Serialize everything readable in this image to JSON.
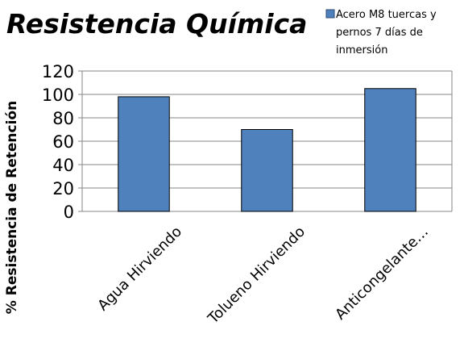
{
  "chart_data": {
    "type": "bar",
    "title": "Resistencia Química",
    "ylabel": "% Resistencia de Retención",
    "xlabel": "",
    "categories": [
      "Agua Hirviendo",
      "Tolueno Hirviendo",
      "Anticongelante…"
    ],
    "series": [
      {
        "name_lines": [
          "Acero M8 tuercas y",
          "pernos 7 días de",
          "inmersión"
        ],
        "values": [
          98,
          70,
          105
        ],
        "color": "#4F81BD"
      }
    ],
    "ylim": [
      0,
      120
    ],
    "yticks": [
      "0",
      "20",
      "40",
      "60",
      "80",
      "100",
      "120"
    ],
    "grid": true,
    "legend_position": "top-right"
  }
}
